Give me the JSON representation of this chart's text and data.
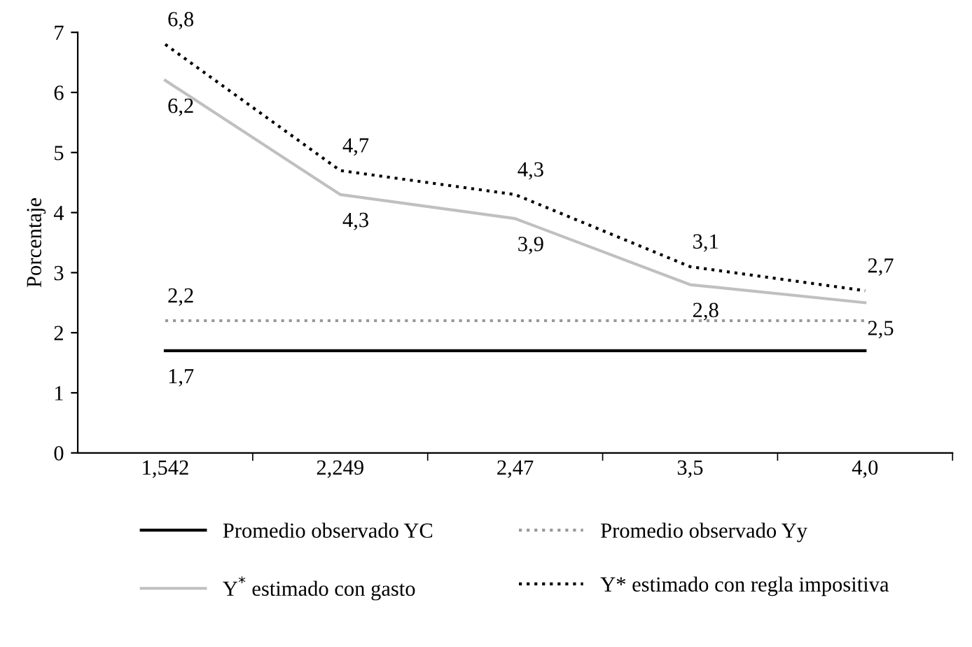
{
  "chart_data": {
    "type": "line",
    "ylabel": "Porcentaje",
    "categories": [
      "1,542",
      "2,249",
      "2,47",
      "3,5",
      "4,0"
    ],
    "ylim": [
      0,
      7
    ],
    "yticks": [
      0,
      1,
      2,
      3,
      4,
      5,
      6,
      7
    ],
    "grid": false,
    "legend": "bottom",
    "marker": "none",
    "series": [
      {
        "name": "Promedio observado YC",
        "color": "#000000",
        "line_style": "solid",
        "values": [
          1.7,
          1.7,
          1.7,
          1.7,
          1.7
        ],
        "value_labels": [
          "1,7",
          null,
          null,
          null,
          null
        ]
      },
      {
        "name": "Promedio observado Yy",
        "color": "#999999",
        "line_style": "dotted",
        "values": [
          2.2,
          2.2,
          2.2,
          2.2,
          2.2
        ],
        "value_labels": [
          "2,2",
          null,
          null,
          null,
          null
        ]
      },
      {
        "name": "Y$^{*}$ estimado con gasto",
        "color": "#c0c0c0",
        "line_style": "solid",
        "values": [
          6.2,
          4.3,
          3.9,
          2.8,
          2.5
        ],
        "value_labels": [
          "6,2",
          "4,3",
          "3,9",
          "2,8",
          "2,5"
        ]
      },
      {
        "name": "Y* estimado con regla impositiva",
        "color": "#000000",
        "line_style": "dotted",
        "values": [
          6.8,
          4.7,
          4.3,
          3.1,
          2.7
        ],
        "value_labels": [
          "6,8",
          "4,7",
          "4,3",
          "3,1",
          "2,7"
        ]
      }
    ]
  }
}
